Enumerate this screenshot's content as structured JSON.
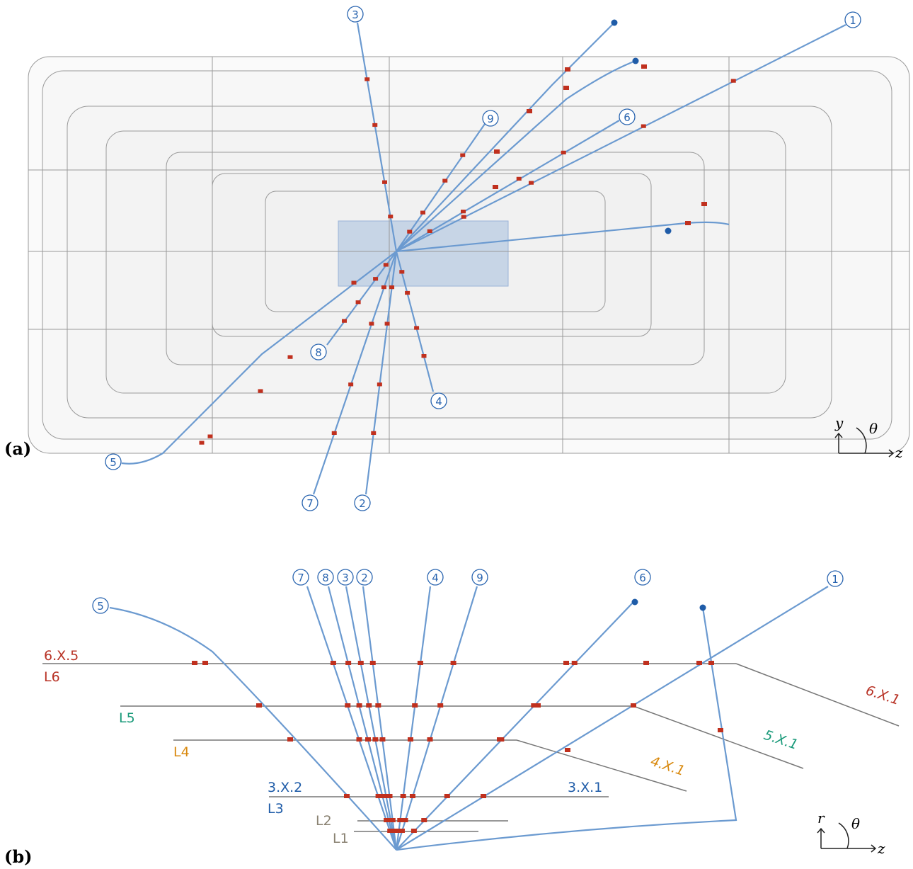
{
  "panel_a": {
    "label": "(a)",
    "tracks": [
      "1",
      "2",
      "3",
      "4",
      "5",
      "6",
      "7",
      "8",
      "9"
    ],
    "axes": {
      "up": "y",
      "angle": "θ",
      "right": "z"
    }
  },
  "panel_b": {
    "label": "(b)",
    "tracks": [
      "1",
      "2",
      "3",
      "4",
      "5",
      "6",
      "7",
      "8",
      "9"
    ],
    "layers": [
      "L1",
      "L2",
      "L3",
      "L4",
      "L5",
      "L6"
    ],
    "sensors": [
      "3.X.1",
      "3.X.2",
      "4.X.1",
      "5.X.1",
      "6.X.1",
      "6.X.5"
    ],
    "axes": {
      "up": "r",
      "angle": "θ",
      "right": "z"
    }
  }
}
